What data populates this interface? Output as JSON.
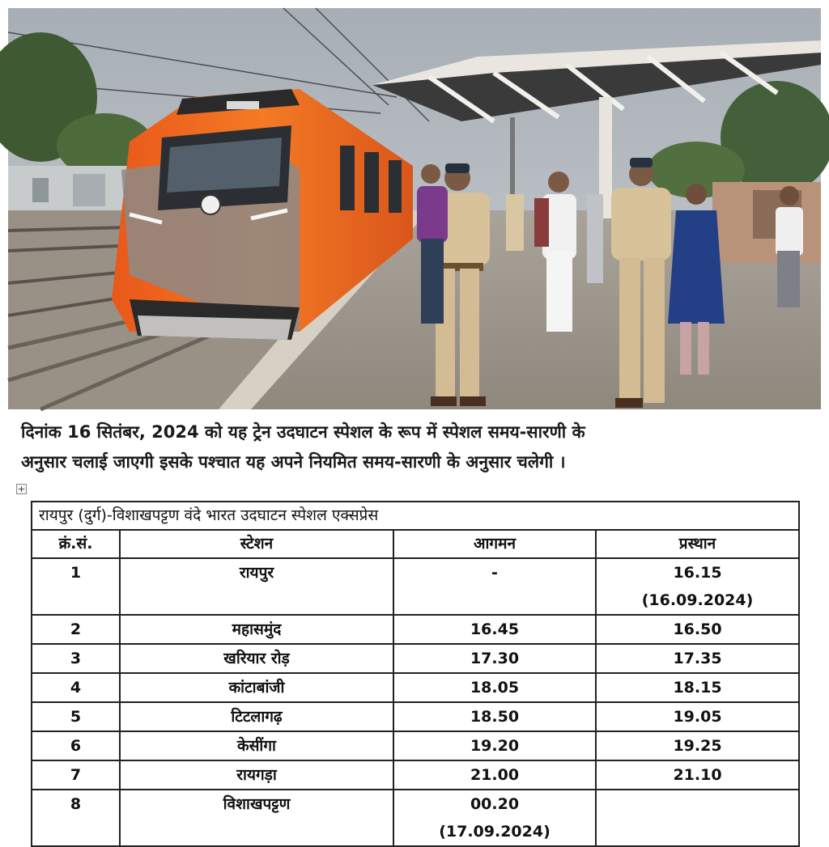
{
  "notice": {
    "line1": "दिनांक 16 सितंबर, 2024 को यह ट्रेन उदघाटन स्पेशल के रूप में स्पेशल समय-सारणी के",
    "line2": "अनुसार चलाई जाएगी इसके पश्चात यह अपने नियमित समय-सारणी के अनुसार चलेगी ।"
  },
  "table": {
    "title": "रायपुर (दुर्ग)-विशाखपट्टण  वंदे भारत उदघाटन स्पेशल एक्सप्रेस",
    "headers": {
      "sno": "क्रं.सं.",
      "station": "स्टेशन",
      "arrival": "आगमन",
      "departure": "प्रस्थान"
    },
    "rows": [
      {
        "sno": "1",
        "station": "रायपुर",
        "arrival": "-",
        "arrival_date": "",
        "departure": "16.15",
        "departure_date": "(16.09.2024)"
      },
      {
        "sno": "2",
        "station": "महासमुंद",
        "arrival": "16.45",
        "arrival_date": "",
        "departure": "16.50",
        "departure_date": ""
      },
      {
        "sno": "3",
        "station": "खरियार रोड़",
        "arrival": "17.30",
        "arrival_date": "",
        "departure": "17.35",
        "departure_date": ""
      },
      {
        "sno": "4",
        "station": "कांटाबांजी",
        "arrival": "18.05",
        "arrival_date": "",
        "departure": "18.15",
        "departure_date": ""
      },
      {
        "sno": "5",
        "station": "टिटलागढ़",
        "arrival": "18.50",
        "arrival_date": "",
        "departure": "19.05",
        "departure_date": ""
      },
      {
        "sno": "6",
        "station": "केसींगा",
        "arrival": "19.20",
        "arrival_date": "",
        "departure": "19.25",
        "departure_date": ""
      },
      {
        "sno": "7",
        "station": "रायगड़ा",
        "arrival": "21.00",
        "arrival_date": "",
        "departure": "21.10",
        "departure_date": ""
      },
      {
        "sno": "8",
        "station": "विशाखपट्टण",
        "arrival": "00.20",
        "arrival_date": "(17.09.2024)",
        "departure": "",
        "departure_date": ""
      }
    ]
  },
  "colors": {
    "train_orange": "#f26a1b",
    "train_grey": "#8d8a86",
    "uniform_khaki": "#d8c29a",
    "sky": "#b9bfc4"
  }
}
